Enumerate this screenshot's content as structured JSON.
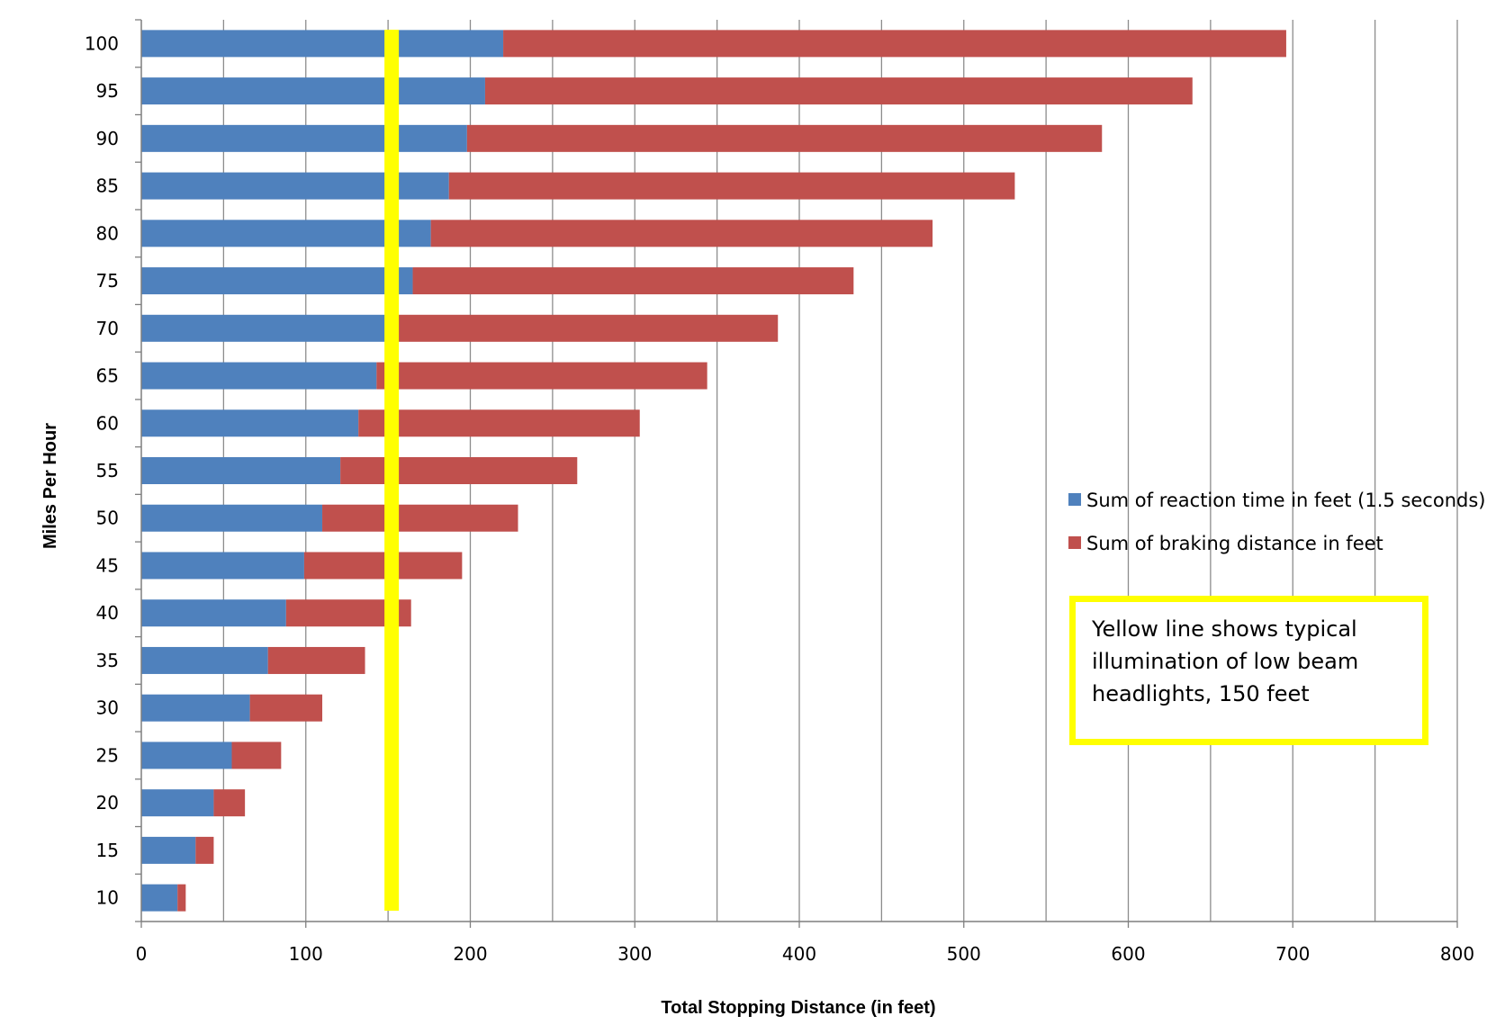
{
  "chart_data": {
    "type": "bar",
    "orientation": "horizontal",
    "stacked": true,
    "categories": [
      "10",
      "15",
      "20",
      "25",
      "30",
      "35",
      "40",
      "45",
      "50",
      "55",
      "60",
      "65",
      "70",
      "75",
      "80",
      "85",
      "90",
      "95",
      "100"
    ],
    "series": [
      {
        "name": "Sum of reaction time in feet (1.5 seconds)",
        "color": "#4f81bd",
        "values": [
          22,
          33,
          44,
          55,
          66,
          77,
          88,
          99,
          110,
          121,
          132,
          143,
          154,
          165,
          176,
          187,
          198,
          209,
          220
        ]
      },
      {
        "name": "Sum of braking distance in feet",
        "color": "#c0504d",
        "values": [
          5,
          11,
          19,
          30,
          44,
          59,
          76,
          96,
          119,
          144,
          171,
          201,
          233,
          268,
          305,
          344,
          386,
          430,
          476
        ]
      }
    ],
    "xlabel": "Total Stopping Distance (in feet)",
    "ylabel": "Miles Per Hour",
    "xlim": [
      0,
      800
    ],
    "xticks": [
      "0",
      "100",
      "200",
      "300",
      "400",
      "500",
      "600",
      "700",
      "800"
    ],
    "xgrid_step": 50,
    "grid": true,
    "legend_position": "right",
    "reference_line": {
      "x": 150,
      "color": "#ffff00"
    },
    "annotation": {
      "lines": [
        "Yellow line shows typical",
        "illumination of low beam",
        "headlights, 150 feet"
      ],
      "border_color": "#ffff00"
    }
  }
}
